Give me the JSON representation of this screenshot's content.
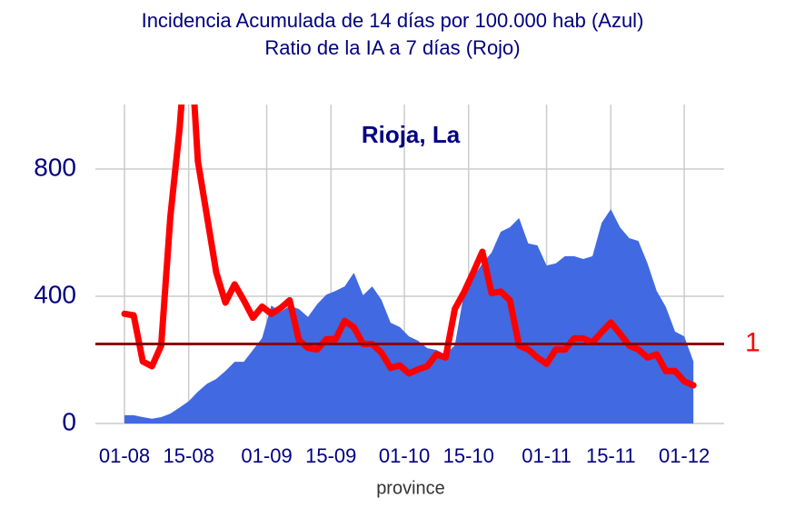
{
  "chart_data": {
    "type": "area_line",
    "title": "Incidencia Acumulada de 14 días por 100.000 hab (Azul)",
    "subtitle": "Ratio de la IA a 7 días (Rojo)",
    "panel_title": "Rioja, La",
    "x_label": "province",
    "x": [
      "01-08",
      "03-08",
      "05-08",
      "07-08",
      "09-08",
      "11-08",
      "13-08",
      "15-08",
      "17-08",
      "19-08",
      "21-08",
      "23-08",
      "25-08",
      "27-08",
      "29-08",
      "31-08",
      "02-09",
      "04-09",
      "06-09",
      "08-09",
      "10-09",
      "12-09",
      "14-09",
      "16-09",
      "18-09",
      "20-09",
      "22-09",
      "24-09",
      "26-09",
      "28-09",
      "30-09",
      "02-10",
      "04-10",
      "06-10",
      "08-10",
      "10-10",
      "12-10",
      "14-10",
      "16-10",
      "18-10",
      "20-10",
      "22-10",
      "24-10",
      "26-10",
      "28-10",
      "30-10",
      "01-11",
      "03-11",
      "05-11",
      "07-11",
      "09-11",
      "11-11",
      "13-11",
      "15-11",
      "17-11",
      "19-11",
      "21-11",
      "23-11",
      "25-11",
      "27-11",
      "29-11",
      "01-12",
      "03-12"
    ],
    "series": [
      {
        "name": "Incidencia Acumulada 14 días",
        "color": "#4169e1",
        "values": [
          26,
          26,
          20,
          15,
          20,
          31,
          50,
          70,
          100,
          125,
          140,
          165,
          194,
          194,
          231,
          269,
          371,
          350,
          370,
          360,
          335,
          375,
          405,
          417,
          431,
          474,
          403,
          431,
          389,
          317,
          303,
          274,
          260,
          237,
          231,
          217,
          246,
          411,
          460,
          503,
          537,
          603,
          617,
          646,
          566,
          560,
          497,
          503,
          526,
          526,
          517,
          526,
          631,
          674,
          617,
          583,
          574,
          503,
          417,
          366,
          289,
          274,
          195
        ]
      },
      {
        "name": "Ratio IA 7 días",
        "color": "#ff0000",
        "axis": "y2",
        "values": [
          1.38,
          1.36,
          0.78,
          0.72,
          0.98,
          2.6,
          3.7,
          5.2,
          3.3,
          2.6,
          1.9,
          1.52,
          1.75,
          1.55,
          1.33,
          1.47,
          1.38,
          1.45,
          1.55,
          1.05,
          0.95,
          0.93,
          1.06,
          1.06,
          1.29,
          1.21,
          1.0,
          1.0,
          0.89,
          0.7,
          0.73,
          0.63,
          0.68,
          0.72,
          0.87,
          0.83,
          1.44,
          1.65,
          1.9,
          2.16,
          1.64,
          1.66,
          1.55,
          0.98,
          0.93,
          0.83,
          0.75,
          0.93,
          0.93,
          1.07,
          1.07,
          1.02,
          1.15,
          1.27,
          1.13,
          0.98,
          0.93,
          0.83,
          0.87,
          0.66,
          0.66,
          0.53,
          0.48
        ]
      }
    ],
    "xticks": [
      "01-08",
      "15-08",
      "01-09",
      "15-09",
      "01-10",
      "15-10",
      "01-11",
      "15-11",
      "01-12"
    ],
    "ylim": [
      0,
      1000
    ],
    "yticks": [
      0,
      400,
      800
    ],
    "y2lim": [
      0,
      4
    ],
    "y2ticks": [
      1
    ],
    "hline_color": "#8b0000",
    "grid": true
  }
}
